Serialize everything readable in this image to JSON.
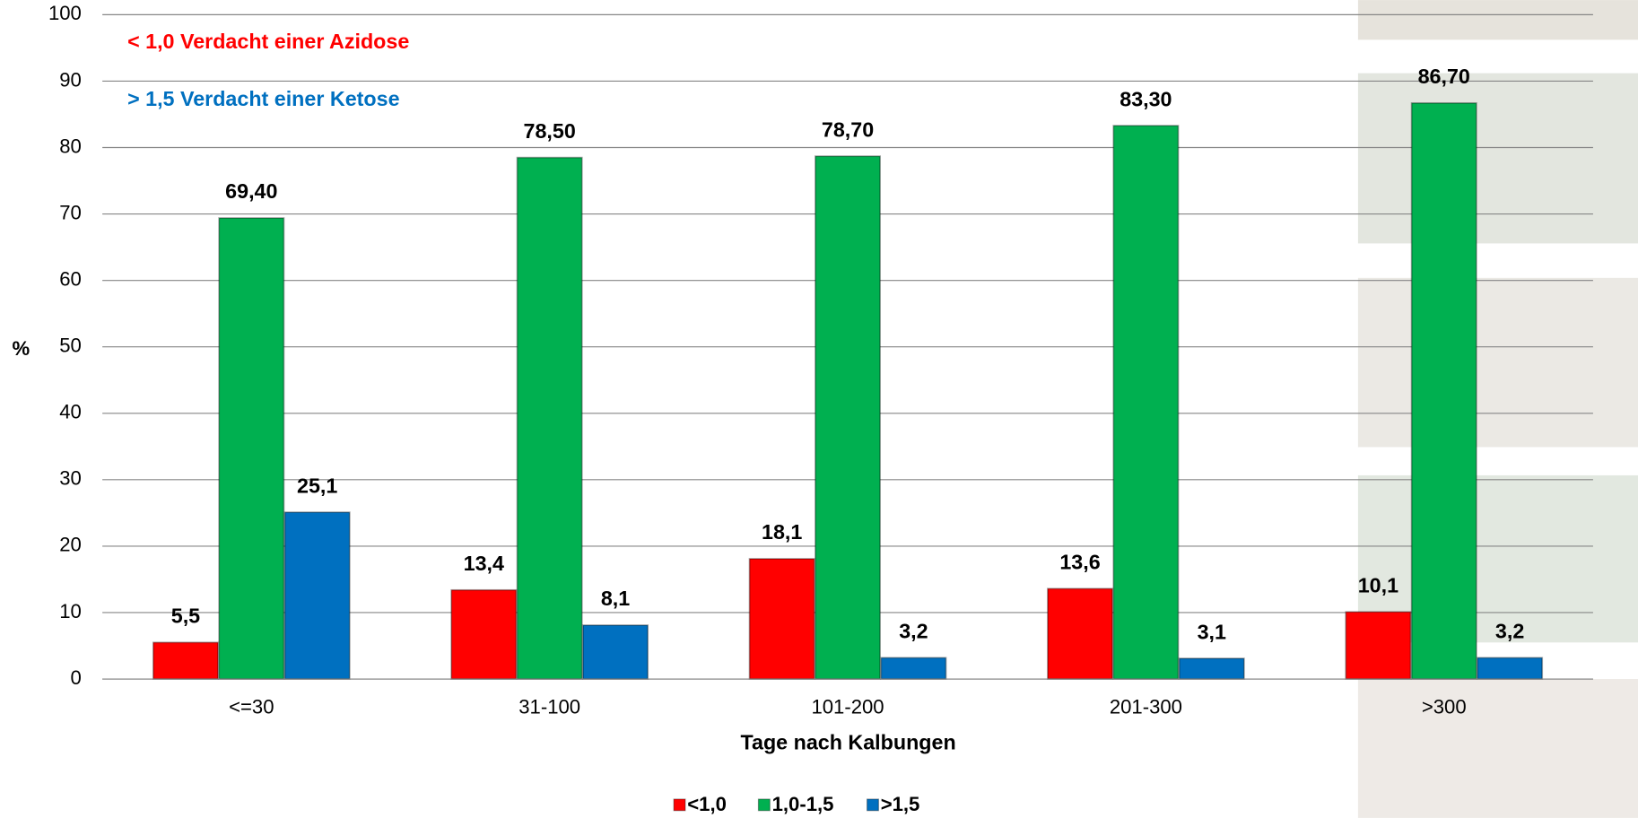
{
  "chart_data": {
    "type": "bar",
    "y_label": "%",
    "x_label": "Tage nach Kalbungen",
    "annotations": [
      {
        "text": "< 1,0 Verdacht einer Azidose",
        "color": "#ff0000"
      },
      {
        "text": "> 1,5 Verdacht einer Ketose",
        "color": "#0070c0"
      }
    ],
    "categories": [
      "<=30",
      "31-100",
      "101-200",
      "201-300",
      ">300"
    ],
    "series": [
      {
        "name": "<1,0",
        "color": "#ff0000",
        "values": [
          5.5,
          13.4,
          18.1,
          13.6,
          10.1
        ],
        "value_labels": [
          "5,5",
          "13,4",
          "18,1",
          "13,6",
          "10,1"
        ]
      },
      {
        "name": "1,0-1,5",
        "color": "#00b050",
        "values": [
          69.4,
          78.5,
          78.7,
          83.3,
          86.7
        ],
        "value_labels": [
          "69,40",
          "78,50",
          "78,70",
          "83,30",
          "86,70"
        ]
      },
      {
        "name": ">1,5",
        "color": "#0070c0",
        "values": [
          25.1,
          8.1,
          3.2,
          3.1,
          3.2
        ],
        "value_labels": [
          "25,1",
          "8,1",
          "3,2",
          "3,1",
          "3,2"
        ]
      }
    ],
    "ylim": [
      0,
      100
    ],
    "yticks": [
      0,
      10,
      20,
      30,
      40,
      50,
      60,
      70,
      80,
      90,
      100
    ],
    "grid": true,
    "legend": "bottom"
  }
}
